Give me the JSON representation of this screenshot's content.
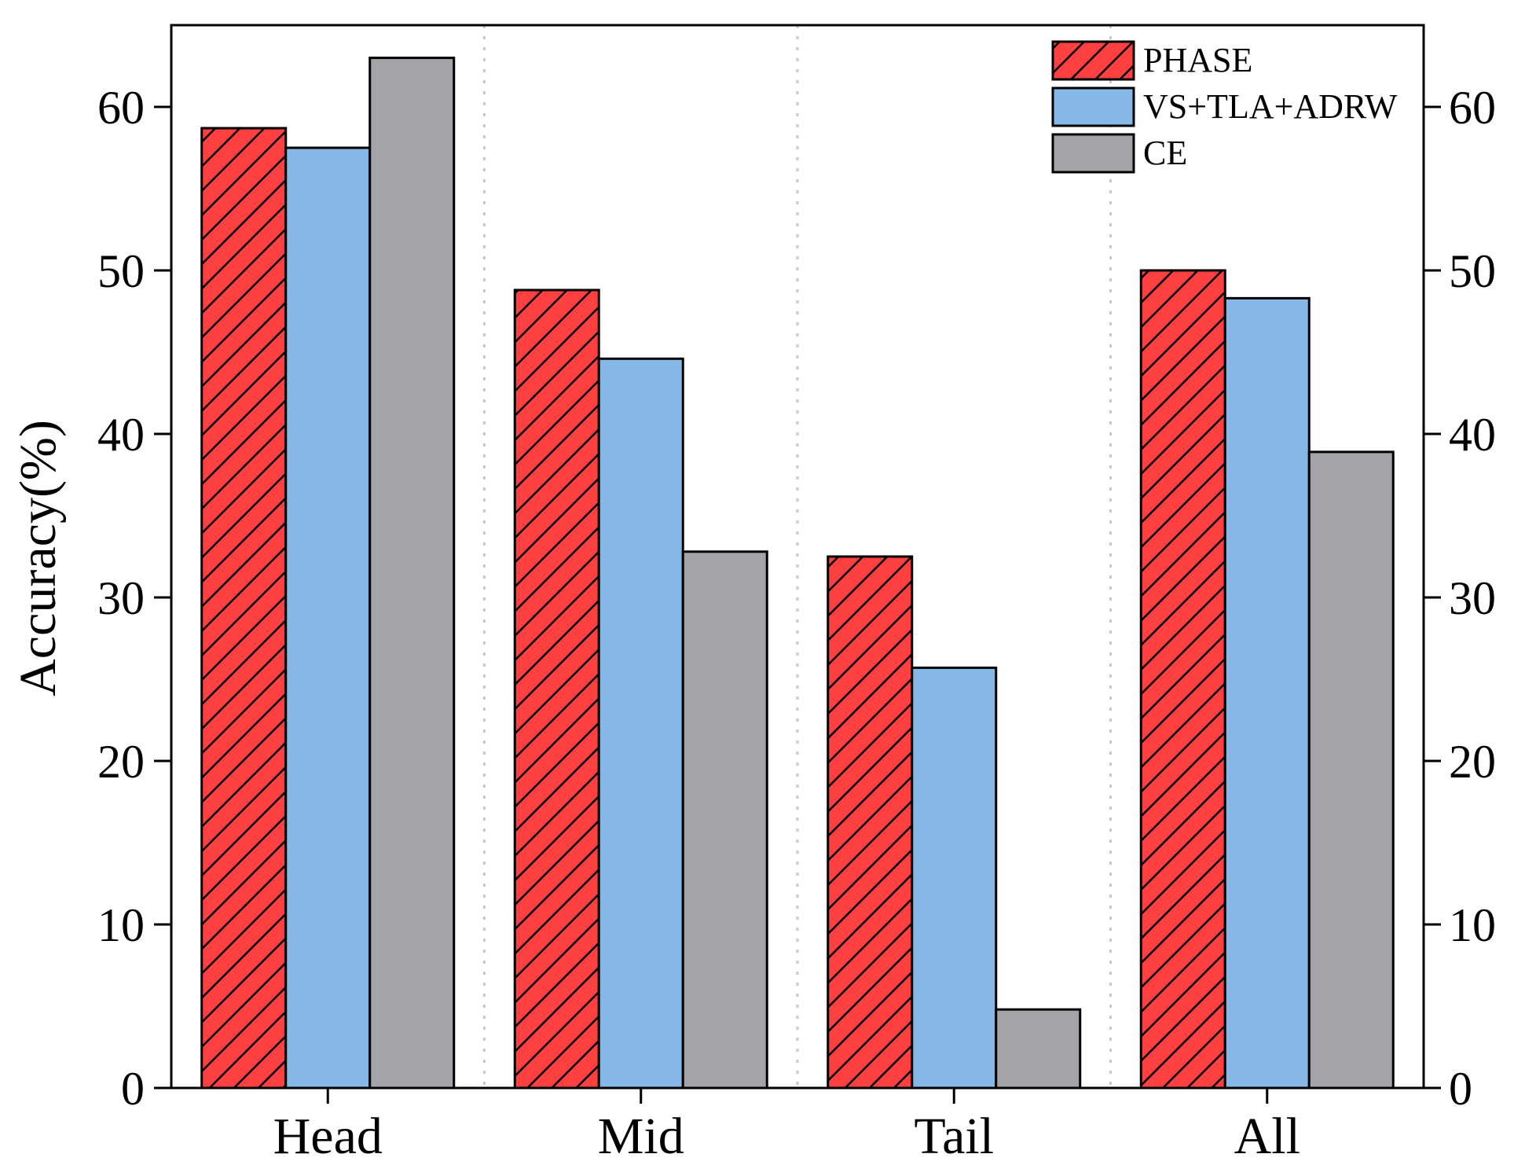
{
  "chart_data": {
    "type": "bar",
    "title": "",
    "xlabel": "",
    "ylabel": "Accuracy(%)",
    "categories": [
      "Head",
      "Mid",
      "Tail",
      "All"
    ],
    "series": [
      {
        "name": "PHASE",
        "values": [
          58.7,
          48.8,
          32.5,
          50.0
        ],
        "color": "#ff4040",
        "pattern": "hatch"
      },
      {
        "name": "VS+TLA+ADRW",
        "values": [
          57.5,
          44.6,
          25.7,
          48.3
        ],
        "color": "#85b8e6",
        "pattern": "solid"
      },
      {
        "name": "CE",
        "values": [
          63.0,
          32.8,
          4.8,
          38.9
        ],
        "color": "#a3a3a8",
        "pattern": "solid"
      }
    ],
    "ylim": [
      0,
      65
    ],
    "yticks": [
      "0",
      "10",
      "20",
      "30",
      "40",
      "50",
      "60"
    ],
    "right_axis_mirrored": true,
    "grid": "vertical dotted separators between categories",
    "legend_position": "top-right"
  }
}
